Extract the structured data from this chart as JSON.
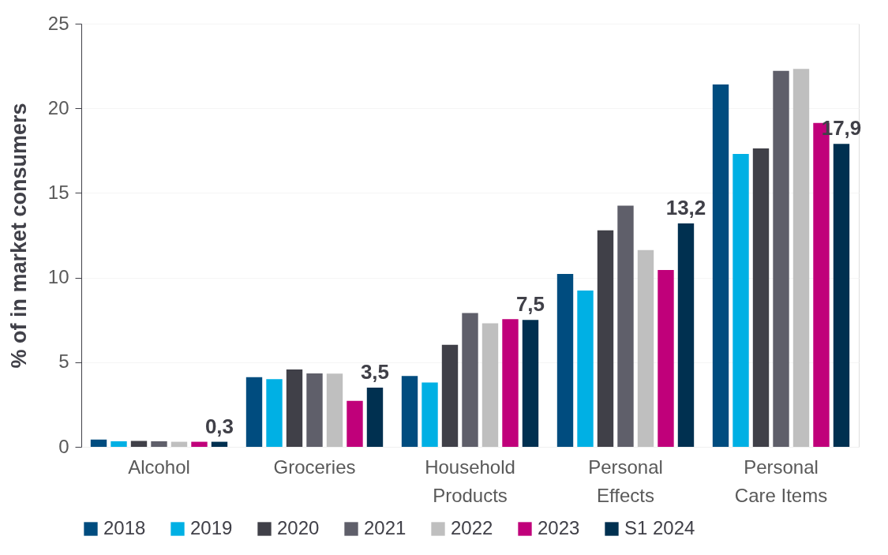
{
  "chart_data": {
    "type": "bar",
    "ylabel": "% of in market consumers",
    "categories": [
      "Alcohol",
      "Groceries",
      "Household Products",
      "Personal Effects",
      "Personal Care Items"
    ],
    "ylim": [
      0,
      25
    ],
    "yticks": [
      0,
      5,
      10,
      15,
      20,
      25
    ],
    "grid": "y",
    "legend": "bottom",
    "series": [
      {
        "name": "2018",
        "color": "#004c7f",
        "values": [
          0.43,
          4.12,
          4.19,
          10.21,
          21.41
        ]
      },
      {
        "name": "2019",
        "color": "#00b0e4",
        "values": [
          0.33,
          4.0,
          3.8,
          9.23,
          17.3
        ]
      },
      {
        "name": "2020",
        "color": "#404048",
        "values": [
          0.35,
          4.57,
          6.03,
          12.79,
          17.63
        ]
      },
      {
        "name": "2021",
        "color": "#5f5f6a",
        "values": [
          0.33,
          4.34,
          7.91,
          14.25,
          22.21
        ]
      },
      {
        "name": "2022",
        "color": "#bfbfbf",
        "values": [
          0.3,
          4.33,
          7.3,
          11.62,
          22.33
        ]
      },
      {
        "name": "2023",
        "color": "#c0007a",
        "values": [
          0.3,
          2.72,
          7.54,
          10.45,
          19.13
        ]
      },
      {
        "name": "S1 2024",
        "color": "#003050",
        "values": [
          0.3,
          3.5,
          7.5,
          13.2,
          17.9
        ],
        "value_labels": [
          "0,3",
          "3,5",
          "7,5",
          "13,2",
          "17,9"
        ]
      }
    ]
  }
}
